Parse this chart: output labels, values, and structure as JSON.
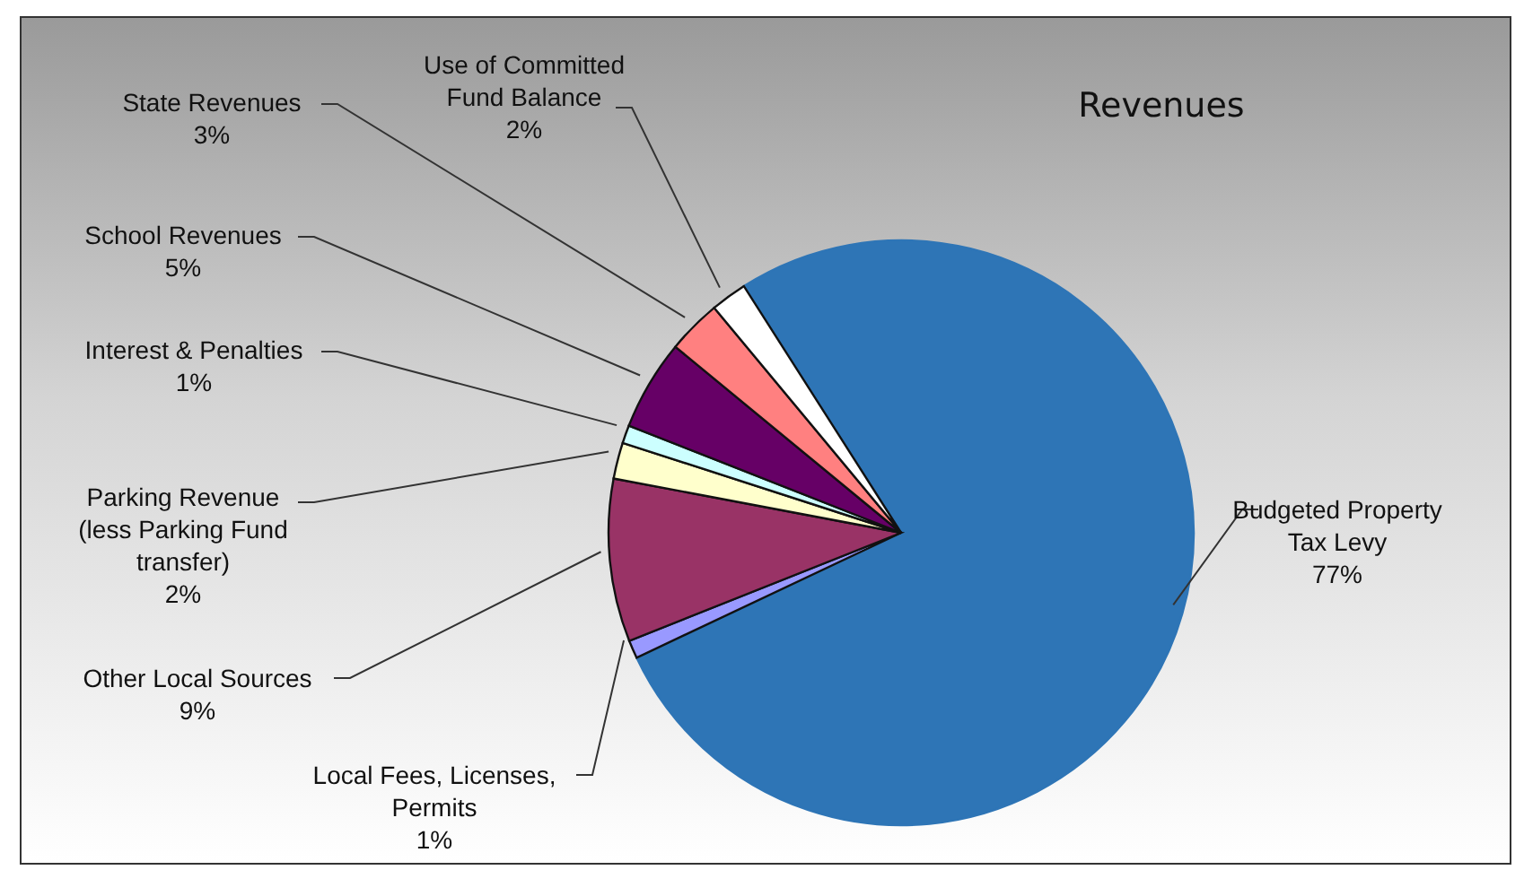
{
  "chart_data": {
    "type": "pie",
    "title": "Revenues",
    "categories": [
      "Budgeted Property Tax Levy",
      "Local Fees, Licenses, Permits",
      "Other Local Sources",
      "Parking Revenue (less Parking Fund transfer)",
      "Interest & Penalties",
      "School Revenues",
      "State Revenues",
      "Use of Committed Fund Balance"
    ],
    "values": [
      77,
      1,
      9,
      2,
      1,
      5,
      3,
      2
    ],
    "colors": [
      "#2e75b6",
      "#9999ff",
      "#993366",
      "#ffffcc",
      "#ccffff",
      "#660066",
      "#ff8080",
      "#ffffff"
    ],
    "value_labels": [
      "77%",
      "1%",
      "9%",
      "2%",
      "1%",
      "5%",
      "3%",
      "2%"
    ]
  }
}
